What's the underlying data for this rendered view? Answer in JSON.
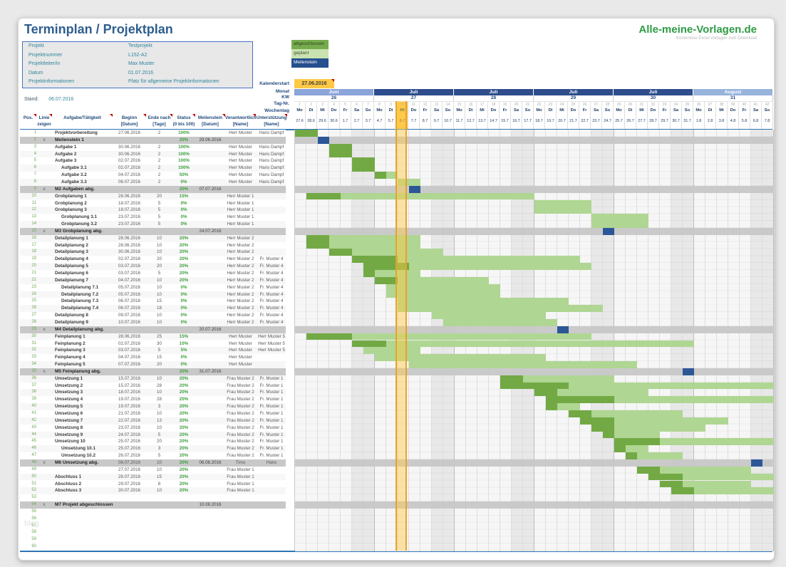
{
  "header": {
    "title": "Terminplan / Projektplan",
    "logo_text": "Alle-meine-Vorlagen.de",
    "logo_subtitle": "Kostenlose Excel-Vorlagen zum Download"
  },
  "info_box": {
    "rows": [
      {
        "label": "Projekt",
        "value": "Testprojekt"
      },
      {
        "label": "Projektnummer",
        "value": "L152-A2"
      },
      {
        "label": "Projektleiter/in",
        "value": "Max Muster"
      },
      {
        "label": "Datum",
        "value": "01.07.2016"
      },
      {
        "label": "Projektinformationen",
        "value": "Platz für allgemeine Projektinformationen"
      }
    ]
  },
  "stand": {
    "label": "Stand:",
    "value": "06.07.2016"
  },
  "legend": {
    "items": [
      {
        "label": "abgeschlossen",
        "color": "#76AC4D",
        "text_color": "#2B4418"
      },
      {
        "label": "geplant",
        "color": "#C9E2B0",
        "text_color": "#41502F"
      },
      {
        "label": "Meilenstein",
        "color": "#254F8F",
        "text_color": "#FFFFFF"
      }
    ]
  },
  "calendar": {
    "kalenderstart_label": "Kalenderstart",
    "kalenderstart_value": "27.06.2016",
    "row_labels": [
      "Monat",
      "KW",
      "Tag-Nr.",
      "Wochentag"
    ],
    "weeks": [
      {
        "month": "Juni",
        "kw": "26",
        "tone": "light"
      },
      {
        "month": "Juli",
        "kw": "27",
        "tone": "dark"
      },
      {
        "month": "Juli",
        "kw": "28",
        "tone": "dark"
      },
      {
        "month": "Juli",
        "kw": "29",
        "tone": "dark"
      },
      {
        "month": "Juli",
        "kw": "30",
        "tone": "dark"
      },
      {
        "month": "August",
        "kw": "31",
        "tone": "light"
      }
    ],
    "day_numbers": [
      1,
      2,
      3,
      4,
      5,
      6,
      7,
      8,
      9,
      10,
      11,
      12,
      13,
      14,
      15,
      16,
      17,
      18,
      19,
      20,
      21,
      22,
      23,
      24,
      25,
      26,
      27,
      28,
      29,
      30,
      31,
      32,
      33,
      34,
      35,
      36,
      37,
      38,
      39,
      40,
      41,
      42
    ],
    "weekdays": [
      "Mo",
      "Di",
      "Mi",
      "Do",
      "Fr",
      "Sa",
      "So",
      "Mo",
      "Di",
      "Mi",
      "Do",
      "Fr",
      "Sa",
      "So",
      "Mo",
      "Di",
      "Mi",
      "Do",
      "Fr",
      "Sa",
      "So",
      "Mo",
      "Di",
      "Mi",
      "Do",
      "Fr",
      "Sa",
      "So",
      "Mo",
      "Di",
      "Mi",
      "Do",
      "Fr",
      "Sa",
      "So",
      "Mo",
      "Di",
      "Mi",
      "Do",
      "Fr",
      "Sa",
      "So"
    ],
    "dates": [
      "27.6",
      "28.6",
      "29.6",
      "30.6",
      "1.7",
      "2.7",
      "3.7",
      "4.7",
      "5.7",
      "6.7",
      "7.7",
      "8.7",
      "9.7",
      "10.7",
      "11.7",
      "12.7",
      "13.7",
      "14.7",
      "15.7",
      "16.7",
      "17.7",
      "18.7",
      "19.7",
      "20.7",
      "21.7",
      "22.7",
      "23.7",
      "24.7",
      "25.7",
      "26.7",
      "27.7",
      "28.7",
      "29.7",
      "30.7",
      "31.7",
      "1.8",
      "2.8",
      "3.8",
      "4.8",
      "5.8",
      "6.8",
      "7.8"
    ],
    "today_day": 10
  },
  "table": {
    "columns": [
      {
        "key": "pos",
        "l1": "Pos.",
        "l2": ""
      },
      {
        "key": "linie",
        "l1": "Linie",
        "l2": "zeigen"
      },
      {
        "key": "task",
        "l1": "Aufgabe/Tätigkeit",
        "l2": ""
      },
      {
        "key": "begin",
        "l1": "Beginn",
        "l2": "[Datum]"
      },
      {
        "key": "ende",
        "l1": "Ende nach",
        "l2": "[Tage]"
      },
      {
        "key": "status",
        "l1": "Status",
        "l2": "(0 bis 100)"
      },
      {
        "key": "ms",
        "l1": "Meilenstein",
        "l2": "[Datum]"
      },
      {
        "key": "ver",
        "l1": "Verantwortlich",
        "l2": "[Name]"
      },
      {
        "key": "unt",
        "l1": "Unterstützung",
        "l2": "[Name]"
      }
    ],
    "rows": [
      {
        "pos": 1,
        "task": "Projektvorbereitung",
        "begin": "27.06.2016",
        "dauer": "2",
        "status": "100%",
        "verantwortlich": "Herr Muster",
        "unterstuetzung": "Hans Dampf",
        "bar": [
          1,
          2,
          2
        ]
      },
      {
        "pos": 2,
        "linie": "x",
        "task": "Meilenstein 1",
        "status": "20%",
        "ms_datum": "29.06.2016",
        "band": true,
        "ms_day": 3
      },
      {
        "pos": 3,
        "task": "Aufgabe 1",
        "begin": "30.06.2016",
        "dauer": "2",
        "status": "100%",
        "verantwortlich": "Herr Muster",
        "unterstuetzung": "Hans Dampf",
        "bar": [
          4,
          2,
          2
        ]
      },
      {
        "pos": 4,
        "task": "Aufgabe 2",
        "begin": "30.06.2016",
        "dauer": "2",
        "status": "100%",
        "verantwortlich": "Herr Muster",
        "unterstuetzung": "Hans Dampf",
        "bar": [
          4,
          2,
          2
        ]
      },
      {
        "pos": 5,
        "task": "Aufgabe 3",
        "begin": "02.07.2016",
        "dauer": "2",
        "status": "100%",
        "verantwortlich": "Herr Muster",
        "unterstuetzung": "Hans Dampf",
        "bar": [
          6,
          2,
          2
        ]
      },
      {
        "pos": 6,
        "task": "Aufgabe 3.1",
        "indent": 1,
        "begin": "02.07.2016",
        "dauer": "2",
        "status": "100%",
        "verantwortlich": "Herr Muster",
        "unterstuetzung": "Hans Dampf",
        "bar": [
          6,
          2,
          2
        ]
      },
      {
        "pos": 7,
        "task": "Aufgabe 3.2",
        "indent": 1,
        "begin": "04.07.2016",
        "dauer": "2",
        "status": "50%",
        "verantwortlich": "Herr Muster",
        "unterstuetzung": "Hans Dampf",
        "bar": [
          8,
          2,
          1
        ]
      },
      {
        "pos": 8,
        "task": "Aufgabe 3.3",
        "indent": 1,
        "begin": "06.07.2016",
        "dauer": "2",
        "status": "0%",
        "verantwortlich": "Herr Muster",
        "unterstuetzung": "Hans Dampf",
        "bar": [
          10,
          2,
          0
        ]
      },
      {
        "pos": 9,
        "linie": "x",
        "task": "M2 Aufgaben abg.",
        "status": "20%",
        "ms_datum": "07.07.2016",
        "band": true,
        "ms_day": 11
      },
      {
        "pos": 10,
        "task": "Grobplanung 1",
        "begin": "28.06.2016",
        "dauer": "20",
        "status": "15%",
        "verantwortlich": "Herr Muster 1",
        "bar": [
          2,
          20,
          3
        ]
      },
      {
        "pos": 11,
        "task": "Grobplanung 2",
        "begin": "18.07.2016",
        "dauer": "5",
        "status": "0%",
        "verantwortlich": "Herr Muster 1",
        "bar": [
          22,
          5,
          0
        ]
      },
      {
        "pos": 12,
        "task": "Grobplanung 3",
        "begin": "18.07.2016",
        "dauer": "5",
        "status": "0%",
        "verantwortlich": "Herr Muster 1",
        "bar": [
          22,
          5,
          0
        ]
      },
      {
        "pos": 13,
        "task": "Grobplanung 3.1",
        "indent": 1,
        "begin": "23.07.2016",
        "dauer": "5",
        "status": "0%",
        "verantwortlich": "Herr Muster 1",
        "bar": [
          27,
          5,
          0
        ]
      },
      {
        "pos": 14,
        "task": "Grobplanung 3.2",
        "indent": 1,
        "begin": "23.07.2016",
        "dauer": "5",
        "status": "0%",
        "verantwortlich": "Herr Muster 1",
        "bar": [
          27,
          5,
          0
        ]
      },
      {
        "pos": 15,
        "linie": "x",
        "task": "M3 Grobplanung abg.",
        "ms_datum": "24.07.2016",
        "band": true,
        "ms_day": 28
      },
      {
        "pos": 16,
        "task": "Detailplanung 1",
        "begin": "28.06.2016",
        "dauer": "10",
        "status": "20%",
        "verantwortlich": "Herr Muster 2",
        "bar": [
          2,
          10,
          2
        ]
      },
      {
        "pos": 17,
        "task": "Detailplanung 2",
        "begin": "28.06.2016",
        "dauer": "10",
        "status": "20%",
        "verantwortlich": "Herr Muster 2",
        "bar": [
          2,
          10,
          2
        ]
      },
      {
        "pos": 18,
        "task": "Detailplanung 3",
        "begin": "30.06.2016",
        "dauer": "10",
        "status": "20%",
        "verantwortlich": "Herr Muster 2",
        "bar": [
          4,
          10,
          2
        ]
      },
      {
        "pos": 19,
        "task": "Detailplanung 4",
        "begin": "02.07.2016",
        "dauer": "20",
        "status": "20%",
        "verantwortlich": "Herr Muster 2",
        "unterstuetzung": "Fr. Muster 4",
        "bar": [
          6,
          20,
          4
        ]
      },
      {
        "pos": 20,
        "task": "Detailplanung 5",
        "begin": "03.07.2016",
        "dauer": "20",
        "status": "20%",
        "verantwortlich": "Herr Muster 2",
        "unterstuetzung": "Fr. Muster 4",
        "bar": [
          7,
          20,
          4
        ]
      },
      {
        "pos": 21,
        "task": "Detailplanung 6",
        "begin": "03.07.2016",
        "dauer": "5",
        "status": "20%",
        "verantwortlich": "Herr Muster 2",
        "unterstuetzung": "Fr. Muster 4",
        "bar": [
          7,
          5,
          1
        ]
      },
      {
        "pos": 22,
        "task": "Detailplanung 7",
        "begin": "04.07.2016",
        "dauer": "10",
        "status": "20%",
        "verantwortlich": "Herr Muster 2",
        "unterstuetzung": "Fr. Muster 4",
        "bar": [
          8,
          10,
          2
        ]
      },
      {
        "pos": 23,
        "task": "Detailplanung 7.1",
        "indent": 1,
        "begin": "05.07.2016",
        "dauer": "10",
        "status": "0%",
        "verantwortlich": "Herr Muster 2",
        "unterstuetzung": "Fr. Muster 4",
        "bar": [
          9,
          10,
          0
        ]
      },
      {
        "pos": 24,
        "task": "Detailplanung 7.2",
        "indent": 1,
        "begin": "05.07.2016",
        "dauer": "10",
        "status": "0%",
        "verantwortlich": "Herr Muster 2",
        "unterstuetzung": "Fr. Muster 4",
        "bar": [
          9,
          10,
          0
        ]
      },
      {
        "pos": 25,
        "task": "Detailplanung 7.3",
        "indent": 1,
        "begin": "06.07.2016",
        "dauer": "15",
        "status": "0%",
        "verantwortlich": "Herr Muster 2",
        "unterstuetzung": "Fr. Muster 4",
        "bar": [
          10,
          15,
          0
        ]
      },
      {
        "pos": 26,
        "task": "Detailplanung 7.4",
        "indent": 1,
        "begin": "06.07.2016",
        "dauer": "18",
        "status": "0%",
        "verantwortlich": "Herr Muster 2",
        "unterstuetzung": "Fr. Muster 4",
        "bar": [
          10,
          18,
          0
        ]
      },
      {
        "pos": 27,
        "task": "Detailplanung 8",
        "begin": "09.07.2016",
        "dauer": "10",
        "status": "0%",
        "verantwortlich": "Herr Muster 2",
        "unterstuetzung": "Fr. Muster 4",
        "bar": [
          13,
          10,
          0
        ]
      },
      {
        "pos": 28,
        "task": "Detailplanung 9",
        "begin": "10.07.2016",
        "dauer": "10",
        "status": "0%",
        "verantwortlich": "Herr Muster 2",
        "unterstuetzung": "Fr. Muster 4",
        "bar": [
          14,
          10,
          0
        ]
      },
      {
        "pos": 29,
        "linie": "x",
        "task": "M4 Detailplanung abg.",
        "ms_datum": "20.07.2016",
        "band": true,
        "ms_day": 24
      },
      {
        "pos": 30,
        "task": "Feinplanung 1",
        "begin": "28.06.2016",
        "dauer": "25",
        "status": "15%",
        "verantwortlich": "Herr Muster",
        "unterstuetzung": "Herr Muster 5",
        "bar": [
          2,
          25,
          4
        ]
      },
      {
        "pos": 31,
        "task": "Feinplanung 2",
        "begin": "02.07.2016",
        "dauer": "30",
        "status": "10%",
        "verantwortlich": "Herr Muster",
        "unterstuetzung": "Herr Muster 5",
        "bar": [
          6,
          30,
          3
        ]
      },
      {
        "pos": 32,
        "task": "Feinplanung 3",
        "begin": "03.07.2016",
        "dauer": "5",
        "status": "5%",
        "verantwortlich": "Herr Muster",
        "unterstuetzung": "Herr Muster 5",
        "bar": [
          7,
          5,
          0
        ]
      },
      {
        "pos": 33,
        "task": "Feinplanung 4",
        "begin": "04.07.2016",
        "dauer": "15",
        "status": "0%",
        "verantwortlich": "Herr Muster",
        "bar": [
          8,
          15,
          0
        ]
      },
      {
        "pos": 34,
        "task": "Feinplanung 5",
        "begin": "07.07.2016",
        "dauer": "20",
        "status": "0%",
        "verantwortlich": "Herr Muster",
        "bar": [
          11,
          20,
          0
        ]
      },
      {
        "pos": 35,
        "linie": "x",
        "task": "M5 Feinplanung abg.",
        "status": "20%",
        "ms_datum": "31.07.2016",
        "band": true,
        "ms_day": 35
      },
      {
        "pos": 36,
        "task": "Umsetzung 1",
        "begin": "15.07.2016",
        "dauer": "10",
        "status": "20%",
        "verantwortlich": "Frau Muster 2",
        "unterstuetzung": "Fr. Muster 1",
        "bar": [
          19,
          10,
          2
        ]
      },
      {
        "pos": 37,
        "task": "Umsetzung 2",
        "begin": "15.07.2016",
        "dauer": "28",
        "status": "20%",
        "verantwortlich": "Frau Muster 2",
        "unterstuetzung": "Fr. Muster 1",
        "bar": [
          19,
          28,
          6
        ]
      },
      {
        "pos": 38,
        "task": "Umsetzung 3",
        "begin": "18.07.2016",
        "dauer": "10",
        "status": "20%",
        "verantwortlich": "Frau Muster 2",
        "unterstuetzung": "Fr. Muster 1",
        "bar": [
          22,
          10,
          2
        ]
      },
      {
        "pos": 39,
        "task": "Umsetzung 4",
        "begin": "19.07.2016",
        "dauer": "28",
        "status": "20%",
        "verantwortlich": "Frau Muster 2",
        "unterstuetzung": "Fr. Muster 1",
        "bar": [
          23,
          28,
          6
        ]
      },
      {
        "pos": 40,
        "task": "Umsetzung 5",
        "begin": "19.07.2016",
        "dauer": "3",
        "status": "20%",
        "verantwortlich": "Frau Muster 2",
        "unterstuetzung": "Fr. Muster 1",
        "bar": [
          23,
          3,
          1
        ]
      },
      {
        "pos": 41,
        "task": "Umsetzung 6",
        "begin": "21.07.2016",
        "dauer": "10",
        "status": "20%",
        "verantwortlich": "Frau Muster 2",
        "unterstuetzung": "Fr. Muster 1",
        "bar": [
          25,
          10,
          2
        ]
      },
      {
        "pos": 42,
        "task": "Umsetzung 7",
        "begin": "22.07.2016",
        "dauer": "13",
        "status": "20%",
        "verantwortlich": "Frau Muster 2",
        "unterstuetzung": "Fr. Muster 1",
        "bar": [
          26,
          13,
          3
        ]
      },
      {
        "pos": 43,
        "task": "Umsetzung 8",
        "begin": "23.07.2016",
        "dauer": "10",
        "status": "20%",
        "verantwortlich": "Frau Muster 2",
        "unterstuetzung": "Fr. Muster 1",
        "bar": [
          27,
          10,
          2
        ]
      },
      {
        "pos": 44,
        "task": "Umsetzung 9",
        "begin": "24.07.2016",
        "dauer": "5",
        "status": "20%",
        "verantwortlich": "Frau Muster 2",
        "unterstuetzung": "Fr. Muster 1",
        "bar": [
          28,
          5,
          1
        ]
      },
      {
        "pos": 45,
        "task": "Umsetzung 10",
        "begin": "25.07.2016",
        "dauer": "20",
        "status": "20%",
        "verantwortlich": "Frau Muster 2",
        "unterstuetzung": "Fr. Muster 1",
        "bar": [
          29,
          20,
          4
        ]
      },
      {
        "pos": 46,
        "task": "Umsetzung 10.1",
        "indent": 1,
        "begin": "25.07.2016",
        "dauer": "3",
        "status": "20%",
        "verantwortlich": "Frau Muster 2",
        "unterstuetzung": "Fr. Muster 1",
        "bar": [
          29,
          3,
          1
        ]
      },
      {
        "pos": 47,
        "task": "Umsetzung 10.2",
        "indent": 1,
        "begin": "26.07.2016",
        "dauer": "5",
        "status": "20%",
        "verantwortlich": "Frau Muster 2",
        "unterstuetzung": "Fr. Muster 1",
        "bar": [
          30,
          5,
          1
        ]
      },
      {
        "pos": 48,
        "linie": "x",
        "task": "M6 Umsetzung abg.",
        "begin": "08.07.2016",
        "dauer": "10",
        "status": "20%",
        "ms_datum": "06.08.2016",
        "verantwortlich": "Timo",
        "unterstuetzung": "Hans",
        "band": true,
        "ms_day": 41
      },
      {
        "pos": 49,
        "begin": "27.07.2016",
        "dauer": "10",
        "status": "20%",
        "verantwortlich": "Frau Muster 1",
        "bar": [
          31,
          10,
          2
        ]
      },
      {
        "pos": 50,
        "task": "Abschluss 1",
        "begin": "28.07.2016",
        "dauer": "15",
        "status": "20%",
        "verantwortlich": "Frau Muster 1",
        "bar": [
          32,
          15,
          3
        ]
      },
      {
        "pos": 51,
        "task": "Abschluss 2",
        "begin": "29.07.2016",
        "dauer": "8",
        "status": "20%",
        "verantwortlich": "Frau Muster 1",
        "bar": [
          33,
          8,
          2
        ]
      },
      {
        "pos": 52,
        "task": "Abschluss 3",
        "begin": "30.07.2016",
        "dauer": "10",
        "status": "20%",
        "verantwortlich": "Frau Muster 1",
        "bar": [
          34,
          10,
          2
        ]
      },
      {
        "pos": 53
      },
      {
        "pos": 54,
        "linie": "x",
        "task": "M7 Projekt abgeschlossen",
        "ms_datum": "10.08.2016",
        "band": true
      },
      {
        "pos": 55
      },
      {
        "pos": 56
      },
      {
        "pos": 57
      },
      {
        "pos": 58
      },
      {
        "pos": 59
      },
      {
        "pos": 60
      }
    ]
  },
  "colors": {
    "bar_done": "#72A944",
    "bar_planned": "#AFD692",
    "milestone": "#2B5797",
    "band_row": "#C8C8C8",
    "month_dark": "#2E4D8C",
    "month_light_juni": "#8BA4D9",
    "month_light_august": "#97B3DC",
    "today": "#FFC94D",
    "status_text": "#3EA03E"
  },
  "watermark": "blog"
}
